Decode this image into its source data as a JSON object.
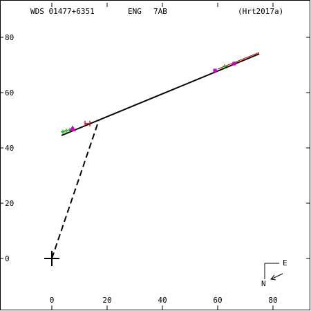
{
  "header": {
    "designation": "WDS 01477+6351",
    "discoverer": "ENG",
    "components": "7AB",
    "orbit_ref": "(Hrt2017a)"
  },
  "compass": {
    "east": "E",
    "north": "N"
  },
  "chart_data": {
    "type": "scatter",
    "xlim": [
      -18.5,
      93
    ],
    "ylim": [
      -18.5,
      93
    ],
    "x_ticks": [
      0,
      20,
      40,
      60,
      80
    ],
    "x_tick_labels": [
      "0",
      "20",
      "40",
      "60",
      "80"
    ],
    "y_ticks": [
      0,
      20,
      40,
      60,
      80
    ],
    "y_tick_labels": [
      "0",
      "20",
      "40",
      "60",
      "80"
    ],
    "primary": [
      0,
      0
    ],
    "orbit_segment_black": [
      [
        3.5,
        44.5
      ],
      [
        75,
        74
      ]
    ],
    "orbit_segment_red": [
      [
        60,
        68.5
      ],
      [
        75,
        74.5
      ]
    ],
    "periastron_line": [
      [
        0,
        0
      ],
      [
        17,
        50
      ]
    ],
    "series": [
      {
        "marker": "plus",
        "color": "#00aa00",
        "points": [
          [
            4,
            45.8
          ],
          [
            5.2,
            46.2
          ],
          [
            6.5,
            46.5
          ],
          [
            62.5,
            69.5
          ]
        ]
      },
      {
        "marker": "triangle",
        "color": "#cc00cc",
        "points": [
          [
            7.5,
            46.9
          ]
        ]
      },
      {
        "marker": "star",
        "color": "#cc00cc",
        "points": [
          [
            66,
            70.5
          ],
          [
            59,
            68
          ]
        ]
      },
      {
        "marker": "bar",
        "color": "#cc0000",
        "points": [
          [
            13,
            48.8
          ]
        ]
      }
    ]
  }
}
